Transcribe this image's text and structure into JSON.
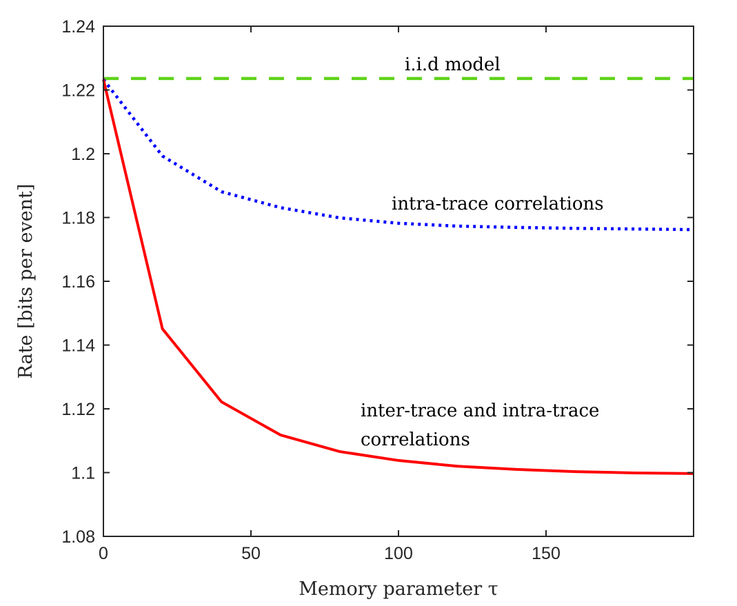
{
  "chart_data": {
    "type": "line",
    "title": "",
    "xlabel": "Memory parameter τ",
    "ylabel": "Rate [bits per event]",
    "xlim": [
      0,
      200
    ],
    "ylim": [
      1.08,
      1.24
    ],
    "xticks": [
      "0",
      "50",
      "100",
      "150"
    ],
    "xtick_values": [
      0,
      50,
      100,
      150
    ],
    "yticks": [
      "1.08",
      "1.1",
      "1.12",
      "1.14",
      "1.16",
      "1.18",
      "1.2",
      "1.22",
      "1.24"
    ],
    "ytick_values": [
      1.08,
      1.1,
      1.12,
      1.14,
      1.16,
      1.18,
      1.2,
      1.22,
      1.24
    ],
    "grid": false,
    "legend": "none",
    "x": [
      0,
      20,
      40,
      60,
      80,
      100,
      120,
      140,
      160,
      180,
      200
    ],
    "series": [
      {
        "name": "i.i.d model",
        "style": "dashed",
        "color": "#5fd31a",
        "values": [
          1.2236,
          1.2236,
          1.2236,
          1.2236,
          1.2236,
          1.2236,
          1.2236,
          1.2236,
          1.2236,
          1.2236,
          1.2236
        ]
      },
      {
        "name": "intra-trace correlations",
        "style": "dotted",
        "color": "#0000ff",
        "values": [
          1.2233,
          1.1993,
          1.1881,
          1.1831,
          1.1799,
          1.1782,
          1.1773,
          1.1769,
          1.1766,
          1.1764,
          1.1762
        ]
      },
      {
        "name": "inter-trace and intra-trace correlations",
        "style": "solid",
        "color": "#ff0000",
        "values": [
          1.2233,
          1.1451,
          1.1222,
          1.1118,
          1.1066,
          1.1038,
          1.102,
          1.101,
          1.1003,
          1.0999,
          1.0997
        ]
      }
    ],
    "annotations": {
      "iid": "i.i.d model",
      "intra": "intra-trace correlations",
      "inter_line1": "inter-trace and intra-trace",
      "inter_line2": "correlations"
    }
  }
}
